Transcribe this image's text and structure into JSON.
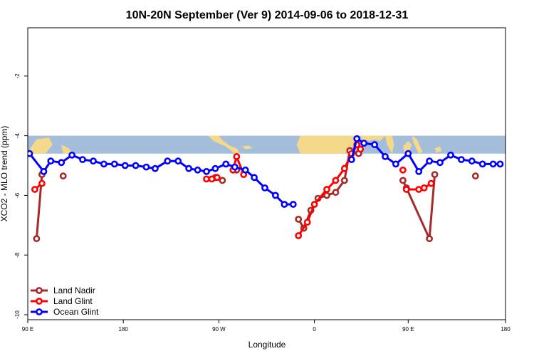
{
  "chart_data": {
    "type": "line",
    "title": "10N-20N September (Ver 9)   2014-09-06 to 2018-12-31",
    "xlabel": "Longitude",
    "ylabel": "XCO2 - MLO trend (ppm)",
    "xlim": [
      -90,
      180
    ],
    "ylim": [
      -10,
      0
    ],
    "x_ticks": [
      {
        "value": -90,
        "label": "90 E"
      },
      {
        "value": -36,
        "label": "180"
      },
      {
        "value": 18,
        "label": "90 W"
      },
      {
        "value": 72,
        "label": "0"
      },
      {
        "value": 125,
        "label": "90 E"
      },
      {
        "value": 180,
        "label": "180"
      }
    ],
    "y_ticks": [
      {
        "value": -10,
        "label": "-10"
      },
      {
        "value": -8,
        "label": "-8"
      },
      {
        "value": -6,
        "label": "-6"
      },
      {
        "value": -4,
        "label": "-4"
      },
      {
        "value": -2,
        "label": "-2"
      }
    ],
    "map_band": {
      "y_range": [
        -4.6,
        -4.0
      ],
      "ocean_color": "#a4bddb",
      "land_color": "#f5d98a"
    },
    "legend_position": "bottom-left",
    "series": [
      {
        "name": "Land Nadir",
        "color": "#a52a2a",
        "segments": [
          {
            "x": [
              -85,
              -82
            ],
            "y": [
              -7.45,
              -5.3
            ]
          },
          {
            "x": [
              -70
            ],
            "y": [
              -5.35
            ]
          },
          {
            "x": [
              16,
              20
            ],
            "y": [
              -5.4,
              -5.5
            ]
          },
          {
            "x": [
              28
            ],
            "y": [
              -5.15
            ]
          },
          {
            "x": [
              63,
              66,
              70,
              74,
              79,
              84,
              89,
              92,
              97
            ],
            "y": [
              -6.8,
              -7.1,
              -6.5,
              -6.1,
              -6.0,
              -5.9,
              -5.5,
              -4.5,
              -4.6
            ]
          },
          {
            "x": [
              122,
              124,
              137,
              140
            ],
            "y": [
              -5.5,
              -5.75,
              -7.45,
              -5.3
            ]
          },
          {
            "x": [
              163
            ],
            "y": [
              -5.35
            ]
          }
        ]
      },
      {
        "name": "Land Glint",
        "color": "#ff0000",
        "segments": [
          {
            "x": [
              -86,
              -82
            ],
            "y": [
              -5.8,
              -5.6
            ]
          },
          {
            "x": [
              11,
              14,
              17
            ],
            "y": [
              -5.45,
              -5.45,
              -5.4
            ]
          },
          {
            "x": [
              26,
              28,
              32
            ],
            "y": [
              -5.15,
              -4.7,
              -5.3
            ]
          },
          {
            "x": [
              63,
              68,
              72,
              79,
              84,
              89,
              93,
              96,
              98
            ],
            "y": [
              -7.35,
              -6.9,
              -6.3,
              -5.8,
              -5.5,
              -5.1,
              -4.6,
              -4.3,
              -4.45
            ]
          },
          {
            "x": [
              122
            ],
            "y": [
              -5.15
            ]
          },
          {
            "x": [
              124,
              131,
              134,
              138
            ],
            "y": [
              -5.8,
              -5.8,
              -5.75,
              -5.6
            ]
          }
        ]
      },
      {
        "name": "Ocean Glint",
        "color": "#0000ff",
        "segments": [
          {
            "x": [
              -89,
              -81,
              -77,
              -71,
              -65,
              -59,
              -53,
              -47,
              -41,
              -35,
              -29,
              -23,
              -18,
              -11,
              -5,
              1,
              6,
              11,
              16,
              22,
              27,
              33,
              38,
              44,
              50,
              55,
              60
            ],
            "y": [
              -4.6,
              -5.2,
              -4.85,
              -4.9,
              -4.65,
              -4.8,
              -4.85,
              -4.95,
              -4.95,
              -5.0,
              -5.0,
              -5.05,
              -5.1,
              -4.85,
              -4.85,
              -5.1,
              -5.15,
              -5.2,
              -5.1,
              -4.95,
              -5.05,
              -5.15,
              -5.4,
              -5.75,
              -6.0,
              -6.3,
              -6.3
            ]
          },
          {
            "x": [
              93,
              96,
              100,
              106,
              112,
              118,
              125,
              131,
              137,
              143,
              149,
              155,
              161,
              167,
              173,
              177
            ],
            "y": [
              -4.8,
              -4.1,
              -4.25,
              -4.3,
              -4.7,
              -4.95,
              -4.6,
              -5.2,
              -4.85,
              -4.9,
              -4.65,
              -4.8,
              -4.85,
              -4.95,
              -4.95,
              -4.95
            ]
          }
        ]
      }
    ]
  }
}
